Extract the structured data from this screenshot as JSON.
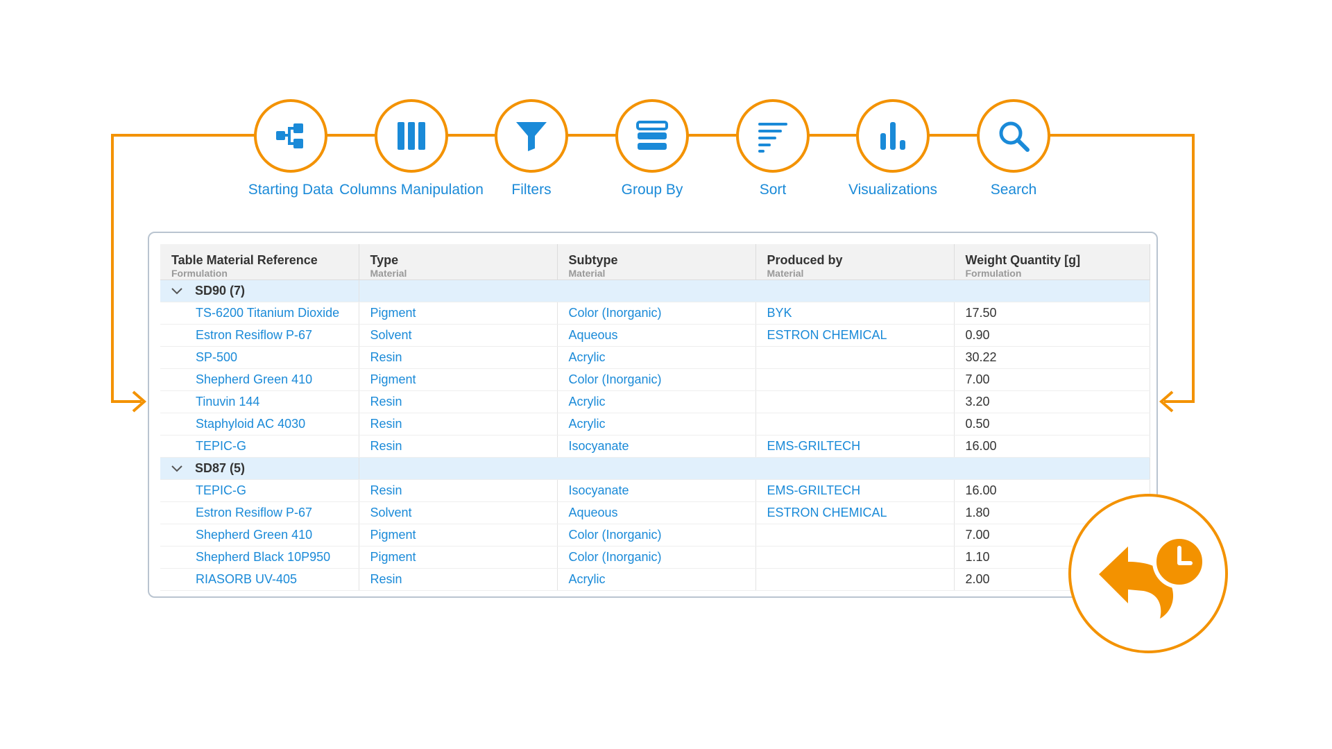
{
  "colors": {
    "accent": "#f39200",
    "link": "#1a8ad8",
    "group_bg": "#e1f0fc",
    "header_bg": "#f2f2f2"
  },
  "toolbar": {
    "steps": [
      {
        "label": "Starting Data",
        "icon": "hierarchy-icon"
      },
      {
        "label": "Columns Manipulation",
        "icon": "columns-icon"
      },
      {
        "label": "Filters",
        "icon": "funnel-icon"
      },
      {
        "label": "Group By",
        "icon": "stack-icon"
      },
      {
        "label": "Sort",
        "icon": "sort-lines-icon"
      },
      {
        "label": "Visualizations",
        "icon": "bar-chart-icon"
      },
      {
        "label": "Search",
        "icon": "magnifier-icon"
      }
    ]
  },
  "table": {
    "columns": [
      {
        "header": "Table Material Reference",
        "sub": "Formulation"
      },
      {
        "header": "Type",
        "sub": "Material"
      },
      {
        "header": "Subtype",
        "sub": "Material"
      },
      {
        "header": "Produced by",
        "sub": "Material"
      },
      {
        "header": "Weight Quantity [g]",
        "sub": "Formulation"
      }
    ],
    "groups": [
      {
        "name": "SD90",
        "count": "(7)",
        "rows": [
          [
            "TS-6200 Titanium Dioxide",
            "Pigment",
            "Color (Inorganic)",
            "BYK",
            "17.50"
          ],
          [
            "Estron Resiflow P-67",
            "Solvent",
            "Aqueous",
            "ESTRON CHEMICAL",
            "0.90"
          ],
          [
            "SP-500",
            "Resin",
            "Acrylic",
            "",
            "30.22"
          ],
          [
            "Shepherd Green 410",
            "Pigment",
            "Color (Inorganic)",
            "",
            "7.00"
          ],
          [
            "Tinuvin 144",
            "Resin",
            "Acrylic",
            "",
            "3.20"
          ],
          [
            "Staphyloid AC 4030",
            "Resin",
            "Acrylic",
            "",
            "0.50"
          ],
          [
            "TEPIC-G",
            "Resin",
            "Isocyanate",
            "EMS-GRILTECH",
            "16.00"
          ]
        ]
      },
      {
        "name": "SD87",
        "count": "(5)",
        "rows": [
          [
            "TEPIC-G",
            "Resin",
            "Isocyanate",
            "EMS-GRILTECH",
            "16.00"
          ],
          [
            "Estron Resiflow P-67",
            "Solvent",
            "Aqueous",
            "ESTRON CHEMICAL",
            "1.80"
          ],
          [
            "Shepherd Green 410",
            "Pigment",
            "Color (Inorganic)",
            "",
            "7.00"
          ],
          [
            "Shepherd Black 10P950",
            "Pigment",
            "Color (Inorganic)",
            "",
            "1.10"
          ],
          [
            "RIASORB UV-405",
            "Resin",
            "Acrylic",
            "",
            "2.00"
          ]
        ]
      }
    ]
  },
  "undo": {
    "icon": "undo-history-icon"
  }
}
